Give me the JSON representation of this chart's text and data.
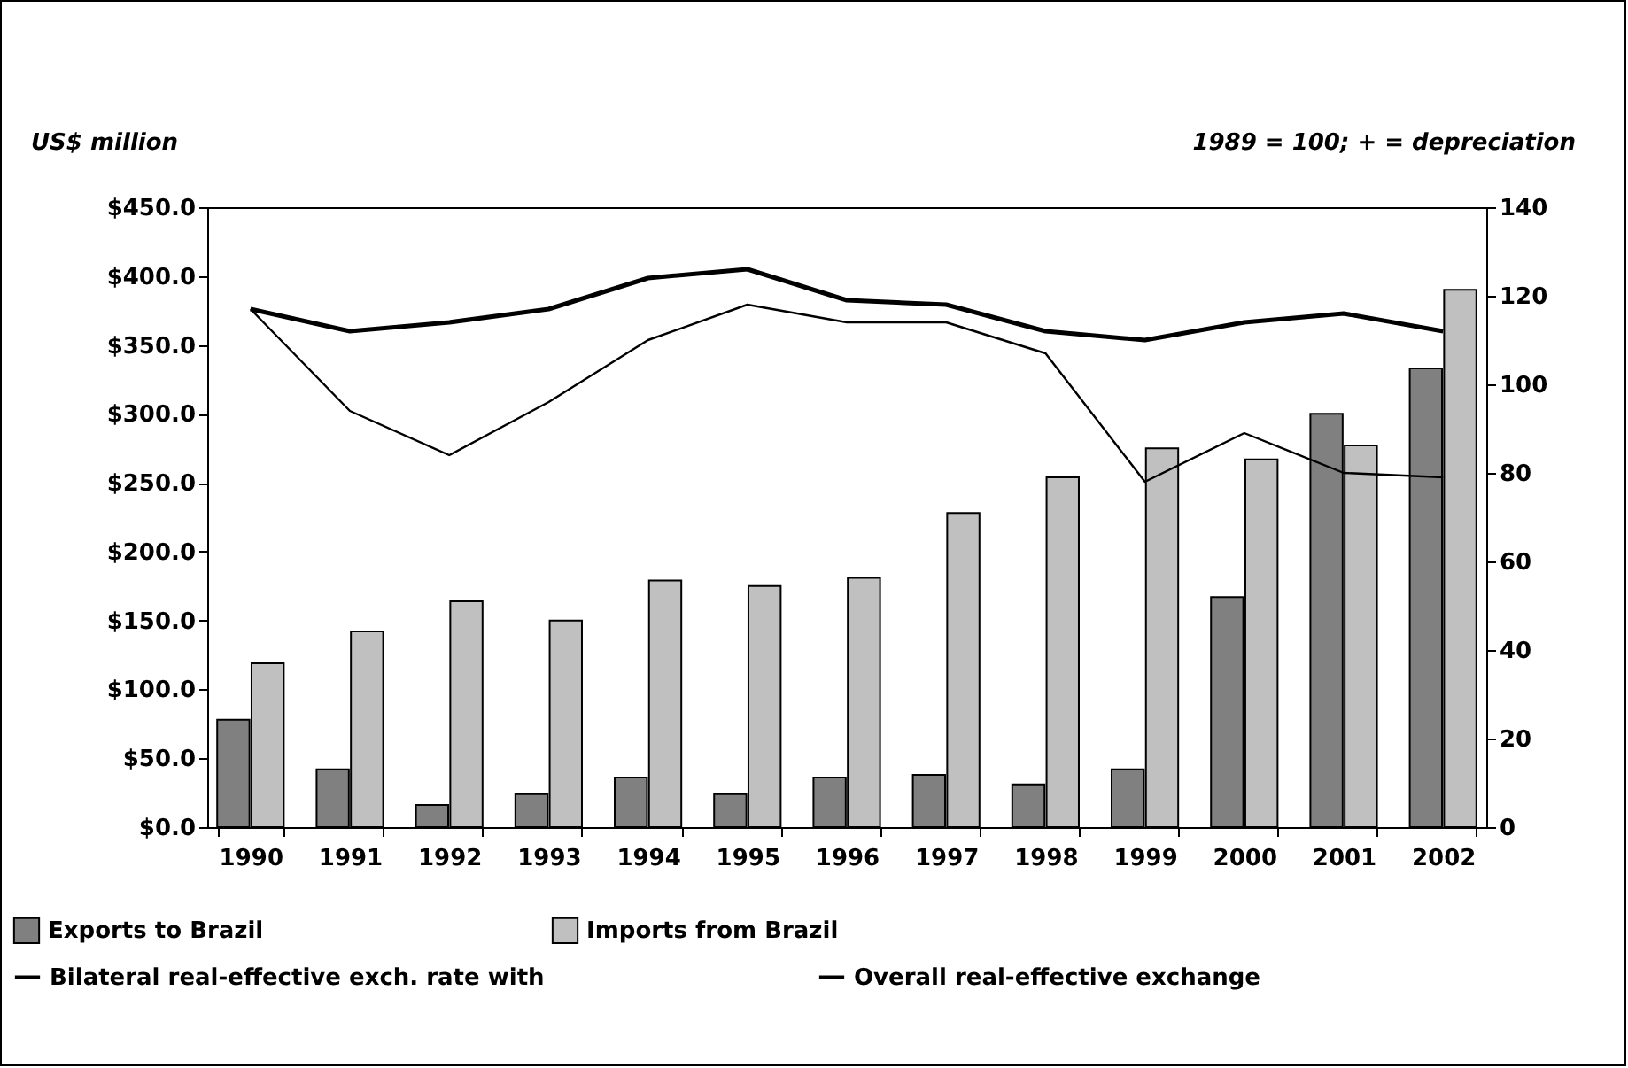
{
  "chart_data": {
    "type": "bar",
    "ylabel": "US$ million",
    "y2label": "1989 = 100; + = depreciation",
    "categories": [
      "1990",
      "1991",
      "1992",
      "1993",
      "1994",
      "1995",
      "1996",
      "1997",
      "1998",
      "1999",
      "2000",
      "2001",
      "2002"
    ],
    "series": [
      {
        "name": "Exports to Brazil",
        "color": "#808080",
        "values": [
          78,
          42,
          16,
          24,
          36,
          24,
          36,
          38,
          31,
          42,
          167,
          300,
          333
        ]
      },
      {
        "name": "Imports from Brazil",
        "color": "#c0c0c0",
        "values": [
          119,
          142,
          164,
          150,
          179,
          175,
          181,
          228,
          254,
          275,
          267,
          277,
          390
        ]
      },
      {
        "name": "Bilateral real-effective exch. rate with",
        "type": "line",
        "axis": "y2",
        "color": "#000000",
        "values": [
          117,
          94,
          84,
          96,
          110,
          118,
          114,
          114,
          107,
          78,
          89,
          80,
          79
        ]
      },
      {
        "name": "Overall real-effective exchange",
        "type": "line",
        "axis": "y2",
        "color": "#000000",
        "values": [
          117,
          112,
          114,
          117,
          124,
          126,
          119,
          118,
          112,
          110,
          114,
          116,
          112
        ]
      }
    ],
    "ylim": [
      0,
      450
    ],
    "yticks": [
      {
        "value": 0,
        "label": "$0.0"
      },
      {
        "value": 50,
        "label": "$50.0"
      },
      {
        "value": 100,
        "label": "$100.0"
      },
      {
        "value": 150,
        "label": "$150.0"
      },
      {
        "value": 200,
        "label": "$200.0"
      },
      {
        "value": 250,
        "label": "$250.0"
      },
      {
        "value": 300,
        "label": "$300.0"
      },
      {
        "value": 350,
        "label": "$350.0"
      },
      {
        "value": 400,
        "label": "$400.0"
      },
      {
        "value": 450,
        "label": "$450.0"
      }
    ],
    "y2lim": [
      0,
      140
    ],
    "y2ticks": [
      0,
      20,
      40,
      60,
      80,
      100,
      120,
      140
    ],
    "grid": false,
    "legend": "bottom"
  }
}
